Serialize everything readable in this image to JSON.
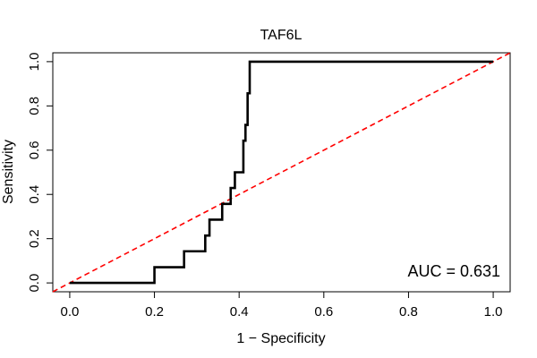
{
  "chart_data": {
    "type": "line",
    "title": "TAF6L",
    "xlabel": "1 − Specificity",
    "ylabel": "Sensitivity",
    "xlim": [
      -0.04,
      1.04
    ],
    "ylim": [
      -0.04,
      1.04
    ],
    "x_ticks": [
      0.0,
      0.2,
      0.4,
      0.6,
      0.8,
      1.0
    ],
    "x_tick_labels": [
      "0.0",
      "0.2",
      "0.4",
      "0.6",
      "0.8",
      "1.0"
    ],
    "y_ticks": [
      0.0,
      0.2,
      0.4,
      0.6,
      0.8,
      1.0
    ],
    "y_tick_labels": [
      "0.0",
      "0.2",
      "0.4",
      "0.6",
      "0.8",
      "1.0"
    ],
    "annotation": "AUC = 0.631",
    "series": [
      {
        "name": "ROC curve",
        "color": "#000000",
        "step": true,
        "points": [
          [
            0.0,
            0.0
          ],
          [
            0.2,
            0.0
          ],
          [
            0.2,
            0.071
          ],
          [
            0.27,
            0.071
          ],
          [
            0.27,
            0.143
          ],
          [
            0.32,
            0.143
          ],
          [
            0.32,
            0.214
          ],
          [
            0.33,
            0.214
          ],
          [
            0.33,
            0.286
          ],
          [
            0.36,
            0.286
          ],
          [
            0.36,
            0.357
          ],
          [
            0.38,
            0.357
          ],
          [
            0.38,
            0.429
          ],
          [
            0.39,
            0.429
          ],
          [
            0.39,
            0.5
          ],
          [
            0.41,
            0.5
          ],
          [
            0.41,
            0.643
          ],
          [
            0.415,
            0.643
          ],
          [
            0.415,
            0.714
          ],
          [
            0.42,
            0.714
          ],
          [
            0.42,
            0.857
          ],
          [
            0.425,
            0.857
          ],
          [
            0.425,
            1.0
          ],
          [
            1.0,
            1.0
          ]
        ]
      },
      {
        "name": "Chance line",
        "color": "#ff0000",
        "dashed": true,
        "points": [
          [
            -0.04,
            -0.04
          ],
          [
            1.04,
            1.04
          ]
        ]
      }
    ]
  }
}
